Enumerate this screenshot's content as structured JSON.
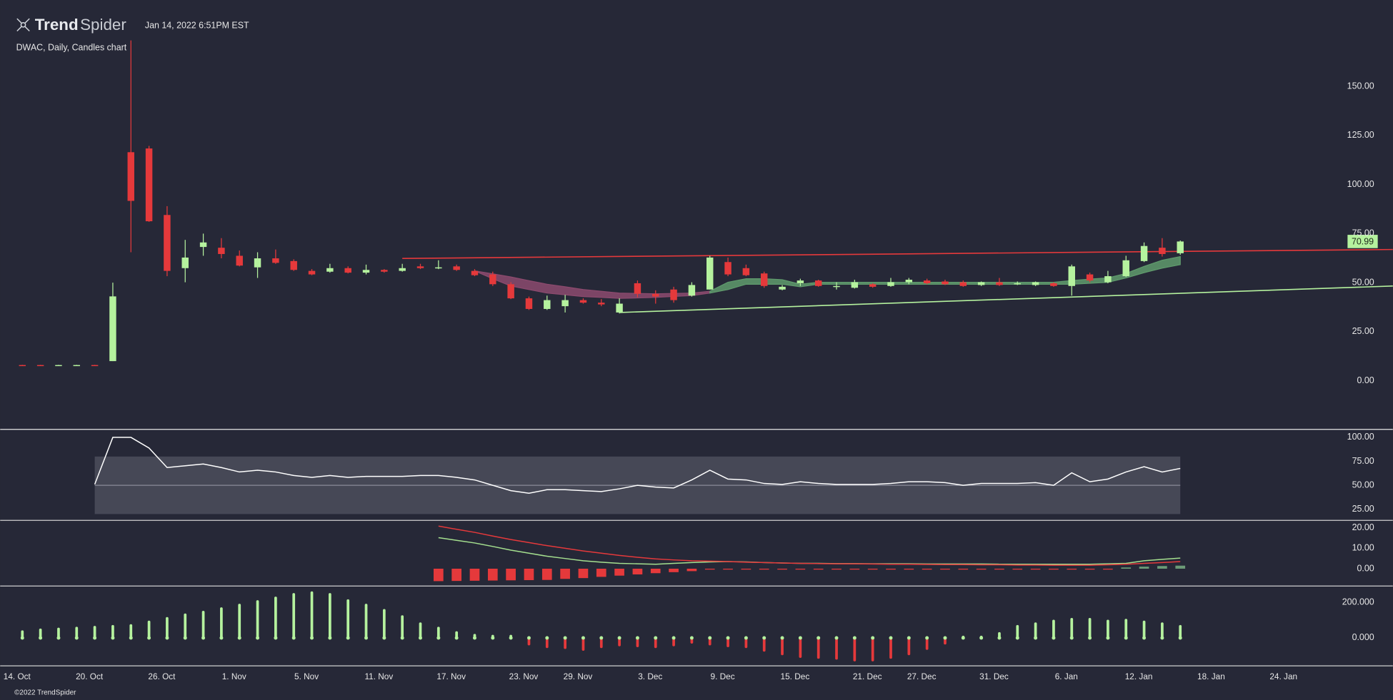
{
  "header": {
    "brand": {
      "bold": "Trend",
      "light": "Spider"
    },
    "timestamp": "Jan 14, 2022 6:51PM EST",
    "symbol": "DWAC, Daily, Candles chart"
  },
  "footer": "©2022 TrendSpider",
  "chart_data": [
    {
      "type": "candlestick",
      "categories": [
        "14. Oct",
        null,
        null,
        null,
        "20. Oct",
        null,
        null,
        null,
        "26. Oct",
        null,
        null,
        null,
        "1. Nov",
        null,
        null,
        null,
        "5. Nov",
        null,
        null,
        null,
        "11. Nov",
        null,
        null,
        null,
        "17. Nov",
        null,
        null,
        null,
        "23. Nov",
        null,
        null,
        "29. Nov",
        null,
        null,
        null,
        "3. Dec",
        null,
        null,
        null,
        "9. Dec",
        null,
        null,
        null,
        "15. Dec",
        null,
        null,
        null,
        "21. Dec",
        null,
        null,
        "27. Dec",
        null,
        null,
        null,
        "31. Dec",
        null,
        null,
        null,
        "6. Jan",
        null,
        null,
        null,
        "12. Jan",
        null,
        null,
        null,
        "18. Jan",
        null,
        null,
        null,
        "24. Jan",
        null,
        null
      ],
      "open": [
        8,
        8,
        7.95,
        7.95,
        8,
        10,
        116.5,
        118.4,
        84.5,
        57.4,
        68.2,
        67.8,
        63.7,
        57.8,
        62.4,
        61,
        56,
        55.6,
        57.4,
        55.1,
        56.5,
        56,
        58.3,
        57.4,
        58.3,
        56,
        54.2,
        49.2,
        42,
        36.6,
        38,
        41.1,
        39.8,
        34.8,
        49.7,
        44.3,
        46.5,
        43.4,
        46.5,
        60.5,
        57.4,
        54.7,
        46.5,
        49.7,
        51.1,
        47.9,
        47.4,
        49.2,
        48.3,
        50.2,
        51.1,
        50.6,
        50.2,
        48.8,
        50.2,
        49.2,
        48.8,
        49.7,
        48.3,
        54.2,
        50.2,
        53.3,
        61,
        67.8,
        65,
        null,
        null,
        null,
        null,
        null,
        null,
        null,
        null
      ],
      "high": [
        8.1,
        8.1,
        8.1,
        8.1,
        8.1,
        50,
        173.5,
        119.7,
        89,
        71.8,
        75,
        72.7,
        66.4,
        65.5,
        66.9,
        61.9,
        56.9,
        59.6,
        58.3,
        59.2,
        56.9,
        59.6,
        59.6,
        61.4,
        59.2,
        56.9,
        55.6,
        50.2,
        42.9,
        43.4,
        43.8,
        42,
        41.6,
        42,
        51.1,
        46.1,
        47.9,
        50.2,
        63.7,
        62.8,
        59.2,
        55.6,
        48.8,
        52,
        51.5,
        50.2,
        51.5,
        49.7,
        52.4,
        52.4,
        52,
        51.5,
        51.1,
        50.6,
        52.4,
        50.6,
        50.6,
        50.2,
        59.2,
        55.1,
        56,
        63.7,
        70.5,
        72.7,
        71.5,
        null,
        null,
        null,
        null,
        null,
        null,
        null,
        null
      ],
      "low": [
        7.9,
        7.9,
        7.9,
        7.9,
        7.9,
        10,
        65.5,
        81,
        53.3,
        50.2,
        63.7,
        62.4,
        58.3,
        52.4,
        59.6,
        56,
        53.8,
        55.1,
        54.7,
        54.2,
        55.1,
        55.6,
        56.9,
        56.9,
        56,
        53.3,
        48.3,
        41.6,
        36.1,
        36.1,
        34.8,
        39.3,
        38,
        34.3,
        42.5,
        39.3,
        39.8,
        42.9,
        46.5,
        53.3,
        53.3,
        47.4,
        46.1,
        48.3,
        47.9,
        46.5,
        47,
        47.4,
        47.9,
        49.2,
        49.2,
        48.8,
        47.9,
        48.3,
        48.3,
        48.8,
        48.3,
        47.9,
        43.4,
        50.2,
        49.7,
        52.9,
        60.5,
        63.3,
        64.2,
        null,
        null,
        null,
        null,
        null,
        null,
        null,
        null
      ],
      "close": [
        7.95,
        7.95,
        8,
        8,
        7.95,
        43,
        91.7,
        81.3,
        56,
        62.8,
        70.5,
        64.6,
        58.7,
        62.4,
        60.1,
        56.5,
        54.2,
        57.4,
        55.1,
        56.5,
        55.6,
        57.4,
        57.4,
        57.8,
        56.5,
        53.8,
        49.2,
        42,
        36.6,
        41.1,
        41.1,
        39.8,
        38.9,
        39.3,
        44.3,
        42.9,
        41.1,
        48.8,
        62.8,
        54.2,
        53.8,
        48.3,
        47.9,
        51.1,
        48.3,
        48.3,
        50.2,
        47.9,
        50.2,
        51.5,
        49.7,
        49.2,
        48.3,
        50.2,
        48.8,
        49.7,
        50.2,
        48.3,
        58.3,
        51.1,
        53.3,
        61.4,
        68.7,
        64.6,
        70.99,
        null,
        null,
        null,
        null,
        null,
        null,
        null,
        null
      ],
      "color_up": "#b5f29e",
      "color_down": "#e5393b",
      "bands": [
        {
          "color": "#8c4a6e",
          "upper": [
            null,
            null,
            null,
            null,
            null,
            null,
            null,
            null,
            null,
            null,
            null,
            null,
            null,
            null,
            null,
            null,
            null,
            null,
            null,
            null,
            null,
            null,
            null,
            null,
            null,
            56,
            54.5,
            52.9,
            51,
            49.2,
            47.9,
            46.5,
            45.6,
            44.7,
            44.5,
            44.3,
            44.5,
            44.7,
            45.6,
            null,
            null,
            null,
            null,
            null,
            null,
            null,
            null,
            null,
            null,
            null,
            null,
            null,
            null,
            null,
            null,
            null,
            null,
            null,
            null,
            null,
            null,
            null,
            null,
            null,
            null,
            null,
            null,
            null,
            null,
            null,
            null,
            null,
            null
          ],
          "lower": [
            null,
            null,
            null,
            null,
            null,
            null,
            null,
            null,
            null,
            null,
            null,
            null,
            null,
            null,
            null,
            null,
            null,
            null,
            null,
            null,
            null,
            null,
            null,
            null,
            null,
            56,
            52,
            48.3,
            46.5,
            44.7,
            43.8,
            42.9,
            42.5,
            42,
            42.2,
            42.5,
            43,
            43.4,
            44.7,
            null,
            null,
            null,
            null,
            null,
            null,
            null,
            null,
            null,
            null,
            null,
            null,
            null,
            null,
            null,
            null,
            null,
            null,
            null,
            null,
            null,
            null,
            null,
            null,
            null,
            null,
            null,
            null,
            null,
            null,
            null,
            null,
            null,
            null
          ]
        },
        {
          "color": "#5f9a6c",
          "upper": [
            null,
            null,
            null,
            null,
            null,
            null,
            null,
            null,
            null,
            null,
            null,
            null,
            null,
            null,
            null,
            null,
            null,
            null,
            null,
            null,
            null,
            null,
            null,
            null,
            null,
            null,
            null,
            null,
            null,
            null,
            null,
            null,
            null,
            null,
            null,
            null,
            null,
            null,
            45.6,
            50.2,
            52,
            52,
            51.5,
            49.2,
            50.2,
            50.2,
            50.2,
            50.2,
            50.2,
            50.2,
            50.2,
            50.2,
            50.2,
            50.2,
            50.2,
            50.2,
            50.2,
            50.2,
            51.1,
            51.8,
            52.4,
            54.7,
            58.3,
            61.4,
            63.3,
            null,
            null,
            null,
            null,
            null,
            null,
            null,
            null
          ],
          "lower": [
            null,
            null,
            null,
            null,
            null,
            null,
            null,
            null,
            null,
            null,
            null,
            null,
            null,
            null,
            null,
            null,
            null,
            null,
            null,
            null,
            null,
            null,
            null,
            null,
            null,
            null,
            null,
            null,
            null,
            null,
            null,
            null,
            null,
            null,
            null,
            null,
            null,
            null,
            44.7,
            46.5,
            49.2,
            49.2,
            49.2,
            47.9,
            49.2,
            49.2,
            49.2,
            49.2,
            49.2,
            49.2,
            49.2,
            49.2,
            49.2,
            49.2,
            49.2,
            49.2,
            49.2,
            49.2,
            49.2,
            49.7,
            50.2,
            52.4,
            55.1,
            57.4,
            59.2,
            null,
            null,
            null,
            null,
            null,
            null,
            null,
            null
          ]
        }
      ],
      "trendlines": [
        {
          "color": "#e5393b",
          "x": [
            21,
            72
          ],
          "values": [
            62.35,
            66.6
          ]
        },
        {
          "color": "#b5f29e",
          "x": [
            33,
            72
          ],
          "values": [
            34.8,
            47.1
          ]
        }
      ],
      "ylim": [
        -23,
        176
      ],
      "yticks": [
        {
          "value": 0,
          "label": "0.00"
        },
        {
          "value": 25,
          "label": "25.00"
        },
        {
          "value": 50,
          "label": "50.00"
        },
        {
          "value": 75,
          "label": "75.00"
        },
        {
          "value": 100,
          "label": "100.00"
        },
        {
          "value": 125,
          "label": "125.00"
        },
        {
          "value": 150,
          "label": "150.00"
        }
      ]
    },
    {
      "type": "line",
      "series": [
        {
          "color": "#ffffff",
          "values": [
            null,
            null,
            null,
            null,
            51,
            100,
            100,
            88.9,
            68.5,
            70.4,
            72.2,
            68.5,
            63.9,
            65.7,
            63.9,
            60.2,
            58.3,
            60.2,
            58.3,
            59.3,
            59.3,
            59.3,
            60.2,
            60.2,
            58.3,
            55.6,
            50,
            44.4,
            41.7,
            45.4,
            45.4,
            44.4,
            43.5,
            46.3,
            50,
            48.1,
            47.2,
            55.6,
            65.7,
            56.5,
            55.6,
            51.9,
            50.9,
            53.7,
            51.9,
            50.9,
            50.9,
            50.9,
            51.9,
            53.7,
            53.7,
            52.8,
            50,
            51.9,
            51.9,
            51.9,
            52.8,
            50,
            63,
            53.7,
            56.5,
            63.9,
            69.4,
            63.9,
            67.6,
            null,
            null,
            null,
            null,
            null,
            null,
            null,
            null
          ]
        }
      ],
      "band": [
        20,
        80
      ],
      "band_color": "#4a4b5a",
      "midline": 50,
      "ylim": [
        13.9,
        108.3
      ],
      "yticks": [
        {
          "value": 25,
          "label": "25.00"
        },
        {
          "value": 50,
          "label": "50.00"
        },
        {
          "value": 75,
          "label": "75.00"
        },
        {
          "value": 100,
          "label": "100.00"
        }
      ]
    },
    {
      "type": "line",
      "series": [
        {
          "type": "bar",
          "color_up": "#6b9a77",
          "color_down": "#e5393b",
          "values": [
            null,
            null,
            null,
            null,
            null,
            null,
            null,
            null,
            null,
            null,
            null,
            null,
            null,
            null,
            null,
            null,
            null,
            null,
            null,
            null,
            null,
            null,
            null,
            -6.1,
            -6.0,
            -5.9,
            -5.8,
            -5.7,
            -5.6,
            -5.5,
            -5.0,
            -4.6,
            -4.0,
            -3.4,
            -2.8,
            -2.2,
            -1.7,
            -1.2,
            -0.2,
            -0.2,
            -0.2,
            -0.2,
            -0.2,
            -0.2,
            -0.2,
            -0.2,
            -0.2,
            -0.2,
            -0.2,
            -0.2,
            -0.2,
            -0.2,
            -0.2,
            -0.2,
            -0.2,
            -0.2,
            -0.2,
            -0.2,
            -0.2,
            -0.2,
            -0.2,
            0.6,
            1.0,
            1.3,
            1.5,
            null,
            null,
            null,
            null,
            null,
            null,
            null,
            null
          ]
        },
        {
          "color": "#a5e08f",
          "values": [
            null,
            null,
            null,
            null,
            null,
            null,
            null,
            null,
            null,
            null,
            null,
            null,
            null,
            null,
            null,
            null,
            null,
            null,
            null,
            null,
            null,
            null,
            null,
            15.2,
            13.9,
            12.6,
            10.9,
            9.1,
            7.6,
            6.1,
            5.0,
            3.9,
            3.2,
            2.6,
            2.4,
            2.2,
            2.6,
            3.0,
            3.3,
            3.5,
            3.3,
            3.0,
            2.8,
            2.6,
            2.6,
            2.5,
            2.5,
            2.4,
            2.4,
            2.4,
            2.3,
            2.3,
            2.3,
            2.3,
            2.2,
            2.2,
            2.2,
            2.2,
            2.2,
            2.2,
            2.4,
            2.6,
            3.9,
            4.6,
            5.2,
            null,
            null,
            null,
            null,
            null,
            null,
            null,
            null
          ]
        },
        {
          "color": "#e5393b",
          "values": [
            null,
            null,
            null,
            null,
            null,
            null,
            null,
            null,
            null,
            null,
            null,
            null,
            null,
            null,
            null,
            null,
            null,
            null,
            null,
            null,
            null,
            null,
            null,
            20.9,
            19.3,
            17.8,
            16.0,
            14.3,
            12.8,
            11.3,
            10.0,
            8.7,
            7.6,
            6.5,
            5.6,
            4.8,
            4.3,
            3.9,
            3.7,
            3.5,
            3.2,
            3.0,
            2.8,
            2.6,
            2.5,
            2.4,
            2.4,
            2.3,
            2.2,
            2.2,
            2.1,
            2.0,
            2.0,
            1.9,
            1.9,
            1.8,
            1.8,
            1.7,
            1.7,
            1.7,
            1.9,
            2.2,
            2.6,
            3.0,
            3.5,
            null,
            null,
            null,
            null,
            null,
            null,
            null,
            null
          ]
        }
      ],
      "ylim": [
        -7.39,
        23.04
      ],
      "yticks": [
        {
          "value": 0,
          "label": "0.00"
        },
        {
          "value": 10,
          "label": "10.00"
        },
        {
          "value": 20,
          "label": "20.00"
        }
      ]
    },
    {
      "type": "bar",
      "values": [
        35,
        45,
        50,
        55,
        60,
        65,
        70,
        90,
        110,
        130,
        145,
        165,
        185,
        205,
        225,
        245,
        255,
        245,
        210,
        185,
        155,
        120,
        80,
        55,
        30,
        15,
        10,
        10,
        -35,
        -50,
        -55,
        -65,
        -50,
        -40,
        -45,
        -50,
        -40,
        -25,
        -35,
        -45,
        -50,
        -70,
        -90,
        -105,
        -110,
        -115,
        -125,
        -125,
        -110,
        -90,
        -60,
        -30,
        5,
        5,
        25,
        65,
        80,
        95,
        105,
        105,
        95,
        100,
        90,
        80,
        65,
        null,
        null,
        null,
        null,
        null,
        null,
        null,
        null
      ],
      "color_up": "#b5f29e",
      "color_down": "#e5393b",
      "ylim": [
        -155,
        290
      ],
      "yticks": [
        {
          "value": 0,
          "label": "0.000"
        },
        {
          "value": 200,
          "label": "200.000"
        }
      ]
    }
  ]
}
